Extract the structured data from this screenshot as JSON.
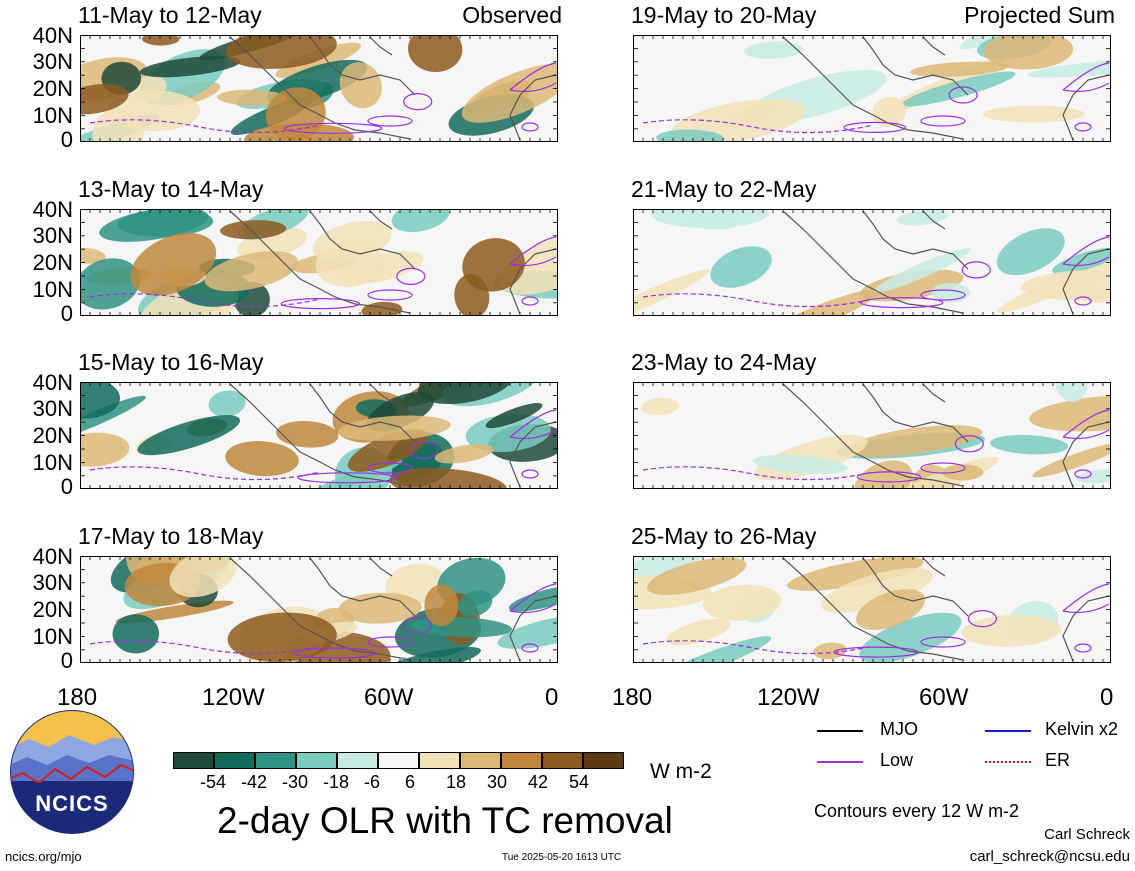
{
  "panels": [
    {
      "title": "11-May to 12-May",
      "label": "Observed"
    },
    {
      "title": "13-May to 14-May",
      "label": ""
    },
    {
      "title": "15-May to 16-May",
      "label": ""
    },
    {
      "title": "17-May to 18-May",
      "label": ""
    },
    {
      "title": "19-May to 20-May",
      "label": "Projected Sum"
    },
    {
      "title": "21-May to 22-May",
      "label": ""
    },
    {
      "title": "23-May to 24-May",
      "label": ""
    },
    {
      "title": "25-May to 26-May",
      "label": ""
    }
  ],
  "lat_labels": [
    "40N",
    "30N",
    "20N",
    "10N",
    "0"
  ],
  "lon_labels": [
    "180",
    "120W",
    "60W",
    "0"
  ],
  "colorbar": {
    "colors": [
      "#1f4a3a",
      "#136b5c",
      "#2f9384",
      "#79cbbf",
      "#c8ebe4",
      "#f6f6f6",
      "#f2e2b8",
      "#dcb877",
      "#c0873c",
      "#8d5a1f",
      "#5c3a12"
    ],
    "ticks": [
      "-54",
      "-42",
      "-30",
      "-18",
      "-6",
      "6",
      "18",
      "30",
      "42",
      "54"
    ],
    "units": "W m-2"
  },
  "legend": [
    {
      "label": "MJO",
      "color": "#000000",
      "style": "solid"
    },
    {
      "label": "Kelvin x2",
      "color": "#1a1acc",
      "style": "solid"
    },
    {
      "label": "Low",
      "color": "#9b30e0",
      "style": "solid"
    },
    {
      "label": "ER",
      "color": "#d01010",
      "style": "dotted"
    }
  ],
  "contour_note": "Contours every 12 W m-2",
  "main_title": "2-day OLR with TC removal",
  "logo_text": "NCICS",
  "footer": {
    "left": "ncics.org/mjo",
    "center": "Tue 2025-05-20 1613 UTC",
    "author": "Carl Schreck",
    "email": "carl_schreck@ncsu.edu"
  }
}
